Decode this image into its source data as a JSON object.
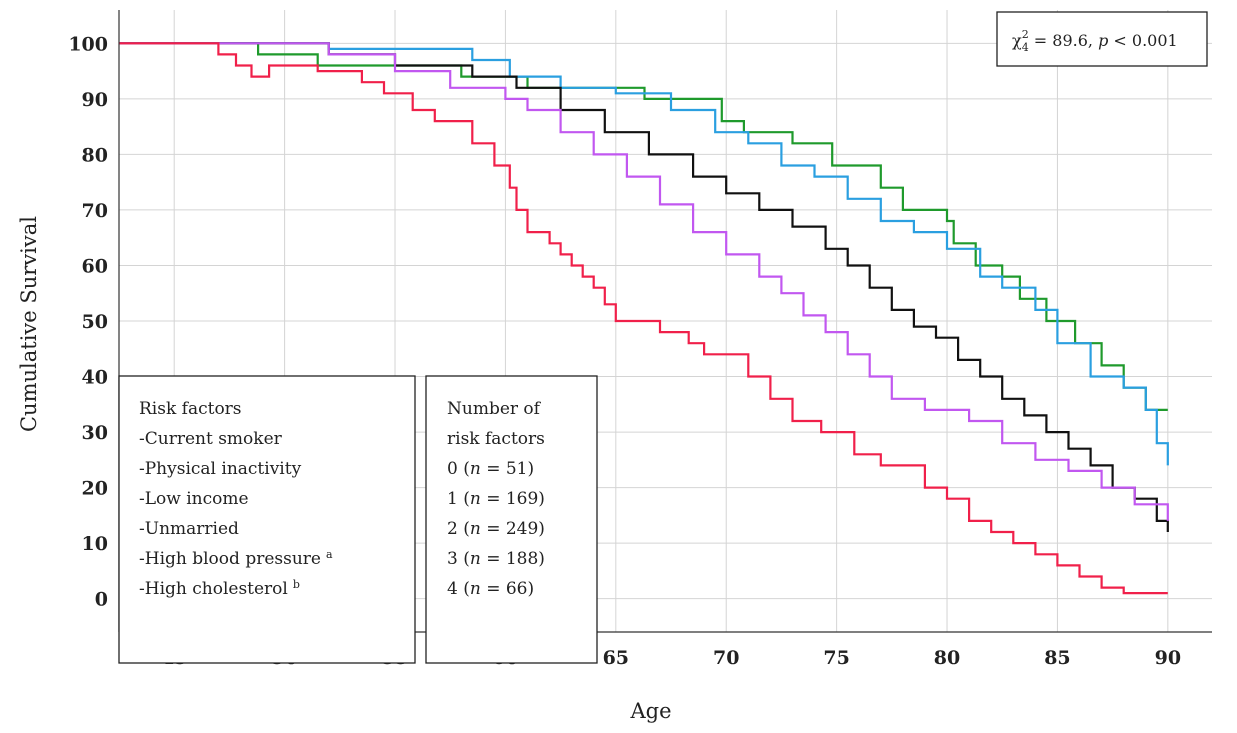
{
  "chart_data": {
    "type": "line",
    "step": true,
    "xlabel": "Age",
    "ylabel": "Cumulative Survival",
    "xlim": [
      42.5,
      92
    ],
    "ylim": [
      -6,
      106
    ],
    "x_ticks": [
      45,
      50,
      55,
      60,
      65,
      70,
      75,
      80,
      85,
      90
    ],
    "y_ticks": [
      0,
      10,
      20,
      30,
      40,
      50,
      60,
      70,
      80,
      90,
      100
    ],
    "grid": true,
    "stat": {
      "symbol": "χ",
      "sup": "2",
      "sub": "4",
      "text_a": " = 89.6, ",
      "p_symbol": "p",
      "text_b": " < 0.001"
    },
    "risk_box": {
      "title": "Risk factors",
      "items": [
        "-Current smoker",
        "-Physical inactivity",
        "-Low income",
        "-Unmarried",
        "-High blood pressure",
        "-High cholesterol"
      ],
      "superscripts": [
        "",
        "",
        "",
        "",
        "a",
        "b"
      ]
    },
    "legend_box": {
      "title_line1": "Number of",
      "title_line2": "risk factors",
      "placement": "bottom-left"
    },
    "series": [
      {
        "name": "0",
        "n_label": "51",
        "color": "#1f9a2c",
        "x": [
          42.5,
          47.0,
          48.8,
          49.5,
          51.5,
          55.8,
          58.0,
          60.2,
          61.0,
          63.7,
          66.3,
          69.8,
          70.8,
          73.0,
          74.8,
          77.0,
          78.0,
          80.0,
          80.3,
          81.3,
          82.5,
          83.3,
          84.5,
          85.8,
          87.0,
          88.0,
          89.0,
          90.0
        ],
        "y": [
          100,
          100,
          98,
          98,
          96,
          96,
          94,
          94,
          92,
          92,
          90,
          86,
          84,
          82,
          78,
          74,
          70,
          68,
          64,
          60,
          58,
          54,
          50,
          46,
          42,
          38,
          34,
          34
        ]
      },
      {
        "name": "1",
        "n_label": "169",
        "color": "#2a9fe0",
        "x": [
          42.5,
          47.0,
          48.8,
          52.0,
          55.8,
          58.5,
          60.2,
          62.5,
          65.0,
          67.5,
          69.5,
          71.0,
          72.5,
          74.0,
          75.5,
          77.0,
          78.5,
          80.0,
          81.5,
          82.5,
          84.0,
          85.0,
          86.5,
          88.0,
          89.0,
          89.5,
          90.0
        ],
        "y": [
          100,
          100,
          100,
          99,
          99,
          97,
          94,
          92,
          91,
          88,
          84,
          82,
          78,
          76,
          72,
          68,
          66,
          63,
          58,
          56,
          52,
          46,
          40,
          38,
          34,
          28,
          24
        ]
      },
      {
        "name": "2",
        "n_label": "249",
        "color": "#111111",
        "x": [
          42.5,
          47.0,
          48.5,
          52.0,
          55.0,
          58.5,
          60.5,
          62.5,
          64.5,
          66.5,
          68.5,
          70.0,
          71.5,
          73.0,
          74.5,
          75.5,
          76.5,
          77.5,
          78.5,
          79.5,
          80.5,
          81.5,
          82.5,
          83.5,
          84.5,
          85.5,
          86.5,
          87.5,
          88.5,
          89.5,
          90.0
        ],
        "y": [
          100,
          100,
          100,
          98,
          96,
          94,
          92,
          88,
          84,
          80,
          76,
          73,
          70,
          67,
          63,
          60,
          56,
          52,
          49,
          47,
          43,
          40,
          36,
          33,
          30,
          27,
          24,
          20,
          18,
          14,
          12
        ]
      },
      {
        "name": "3",
        "n_label": "188",
        "color": "#c157f0",
        "x": [
          42.5,
          47.0,
          48.0,
          52.0,
          55.0,
          57.5,
          60.0,
          61.0,
          62.5,
          64.0,
          65.5,
          67.0,
          68.5,
          70.0,
          71.5,
          72.5,
          73.5,
          74.5,
          75.5,
          76.5,
          77.5,
          79.0,
          81.0,
          82.5,
          84.0,
          85.5,
          87.0,
          88.5,
          90.0
        ],
        "y": [
          100,
          100,
          100,
          98,
          95,
          92,
          90,
          88,
          84,
          80,
          76,
          71,
          66,
          62,
          58,
          55,
          51,
          48,
          44,
          40,
          36,
          34,
          32,
          28,
          25,
          23,
          20,
          17,
          14
        ]
      },
      {
        "name": "4",
        "n_label": "66",
        "color": "#f0204a",
        "x": [
          42.5,
          47.0,
          47.8,
          48.5,
          49.3,
          51.5,
          53.5,
          54.5,
          55.8,
          56.8,
          58.5,
          59.5,
          60.2,
          60.5,
          61.0,
          62.0,
          62.5,
          63.0,
          63.5,
          64.0,
          64.5,
          65.0,
          67.0,
          68.3,
          69.0,
          71.0,
          72.0,
          73.0,
          74.3,
          75.8,
          77.0,
          79.0,
          80.0,
          81.0,
          82.0,
          83.0,
          84.0,
          85.0,
          86.0,
          87.0,
          88.0,
          90.0
        ],
        "y": [
          100,
          98,
          96,
          94,
          96,
          95,
          93,
          91,
          88,
          86,
          82,
          78,
          74,
          70,
          66,
          64,
          62,
          60,
          58,
          56,
          53,
          50,
          48,
          46,
          44,
          40,
          36,
          32,
          30,
          26,
          24,
          20,
          18,
          14,
          12,
          10,
          8,
          6,
          4,
          2,
          1,
          1
        ]
      }
    ]
  }
}
